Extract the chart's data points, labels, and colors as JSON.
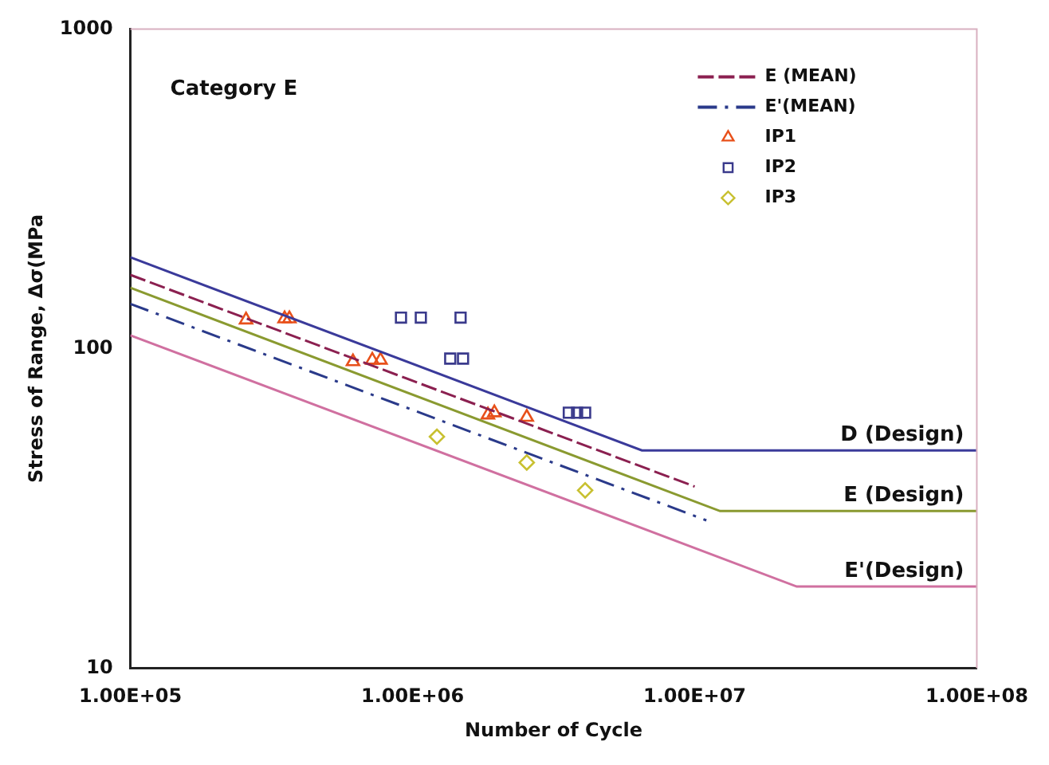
{
  "chart_data": {
    "type": "scatter",
    "annotations": [
      "Category E"
    ],
    "xlabel": "Number of Cycle",
    "ylabel": "Stress of Range, Δσ(MPa",
    "log": "xy",
    "xlim": [
      100000,
      100000000
    ],
    "ylim": [
      10,
      1000
    ],
    "xticks": [
      {
        "value": 100000,
        "label": "1.00E+05"
      },
      {
        "value": 1000000,
        "label": "1.00E+06"
      },
      {
        "value": 10000000,
        "label": "1.00E+07"
      },
      {
        "value": 100000000,
        "label": "1.00E+08"
      }
    ],
    "yticks": [
      10,
      100,
      1000
    ],
    "grid": false,
    "legend": "top right",
    "series": [
      {
        "name": "D (Design)",
        "type": "line",
        "line_style": "solid",
        "marker": "none",
        "color": "#3a3a9a",
        "x": [
          100000,
          6500000,
          100000000
        ],
        "values": [
          193,
          48,
          48
        ]
      },
      {
        "name": "E (Design)",
        "type": "line",
        "line_style": "solid",
        "marker": "none",
        "color": "#8a9a30",
        "x": [
          100000,
          12300000,
          100000000
        ],
        "values": [
          155,
          31,
          31
        ]
      },
      {
        "name": "E'(Design)",
        "type": "line",
        "line_style": "solid",
        "marker": "none",
        "color": "#d070a0",
        "x": [
          100000,
          23000000,
          100000000
        ],
        "values": [
          110,
          18,
          18
        ]
      },
      {
        "name": "E (MEAN)",
        "type": "line",
        "line_style": "dashed",
        "marker": "none",
        "color": "#8b2050",
        "x": [
          100000,
          10000000
        ],
        "values": [
          170,
          37
        ]
      },
      {
        "name": "E'(MEAN)",
        "type": "line",
        "line_style": "dotted",
        "marker": "none",
        "color": "#2a3a8a",
        "x": [
          100000,
          11000000
        ],
        "values": [
          138,
          29
        ]
      },
      {
        "name": "IP1",
        "marker": "triangle",
        "color": "#e8501a",
        "x": [
          257000,
          352000,
          366000,
          615000,
          720000,
          770000,
          1850000,
          1950000,
          2540000
        ],
        "values": [
          123,
          124,
          124,
          91,
          92,
          92,
          62,
          63,
          61
        ]
      },
      {
        "name": "IP2",
        "marker": "square",
        "color": "#3a3a8c",
        "x": [
          910000,
          1070000,
          1480000,
          1360000,
          1510000,
          3580000,
          3830000,
          4090000
        ],
        "values": [
          125,
          125,
          125,
          93,
          93,
          63,
          63,
          63
        ]
      },
      {
        "name": "IP3",
        "marker": "diamond",
        "color": "#c8c030",
        "x": [
          1220000,
          2540000,
          4090000
        ],
        "values": [
          53,
          44,
          36
        ]
      }
    ]
  }
}
